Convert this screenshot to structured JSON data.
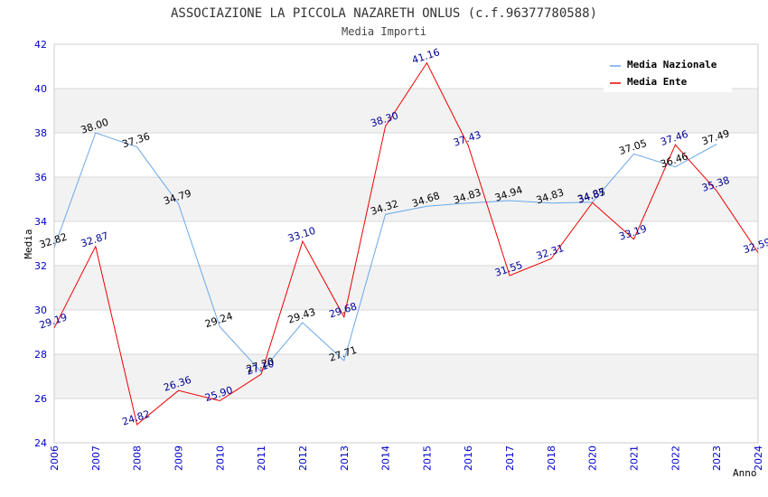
{
  "chart_data": {
    "type": "line",
    "title": "ASSOCIAZIONE LA PICCOLA NAZARETH ONLUS (c.f.96377780588)",
    "subtitle": "Media Importi",
    "xlabel": "Anno",
    "ylabel": "Media",
    "ylim": [
      24,
      42
    ],
    "yticks": [
      24,
      26,
      28,
      30,
      32,
      34,
      36,
      38,
      40,
      42
    ],
    "x": [
      2006,
      2007,
      2008,
      2009,
      2010,
      2011,
      2012,
      2013,
      2014,
      2015,
      2016,
      2017,
      2018,
      2020,
      2021,
      2022,
      2023,
      2024
    ],
    "xtick_labels": [
      "2006",
      "2007",
      "2008",
      "2009",
      "2010",
      "2011",
      "2012",
      "2013",
      "2014",
      "2015",
      "2016",
      "2017",
      "2018",
      "2020",
      "2021",
      "2022",
      "2023",
      "2024"
    ],
    "grid": "horizontal",
    "legend_position": "top-right",
    "series": [
      {
        "name": "Media Nazionale",
        "color": "#6aa7e8",
        "label_color": "#000000",
        "values": [
          32.82,
          38.0,
          37.36,
          34.79,
          29.24,
          27.2,
          29.43,
          27.71,
          34.32,
          34.68,
          34.83,
          34.94,
          34.83,
          34.87,
          37.05,
          36.46,
          37.49,
          null
        ],
        "labels": [
          "32.82",
          "38.00",
          "37.36",
          "34.79",
          "29.24",
          "27.20",
          "29.43",
          "27.71",
          "34.32",
          "34.68",
          "34.83",
          "34.94",
          "34.83",
          "34.87",
          "37.05",
          "36.46",
          "37.49",
          null
        ]
      },
      {
        "name": "Media Ente",
        "color": "#ee0000",
        "label_color": "#000099",
        "values": [
          29.19,
          32.87,
          24.82,
          26.36,
          25.9,
          27.1,
          33.1,
          29.68,
          38.3,
          41.16,
          37.43,
          31.55,
          32.31,
          34.85,
          33.19,
          37.46,
          35.38,
          32.59
        ],
        "labels": [
          "29.19",
          "32.87",
          "24.82",
          "26.36",
          "25.90",
          "27.10",
          "33.10",
          "29.68",
          "38.30",
          "41.16",
          "37.43",
          "31.55",
          "32.31",
          "34.85",
          "33.19",
          "37.46",
          "35.38",
          "32.59"
        ]
      }
    ]
  },
  "colors": {
    "band": "#f2f2f2",
    "grid": "#d8d8d8",
    "axis": "#cccccc"
  }
}
